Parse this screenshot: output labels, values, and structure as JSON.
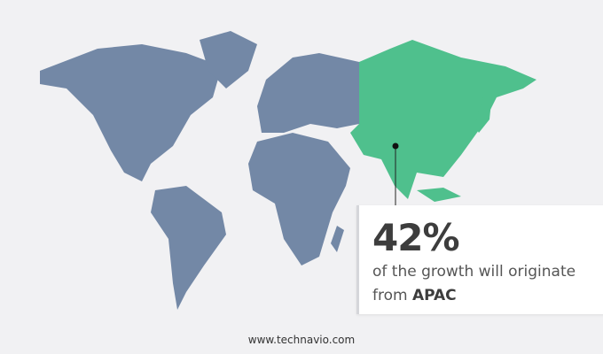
{
  "callout": {
    "value": "42%",
    "text": "of the growth will originate",
    "prefix": "from",
    "region": "APAC"
  },
  "footer": {
    "site": "www.technavio.com"
  },
  "colors": {
    "map_default": "#7388a6",
    "map_highlight": "#4fc08d",
    "background": "#f1f1f3"
  },
  "highlighted_region": "APAC"
}
